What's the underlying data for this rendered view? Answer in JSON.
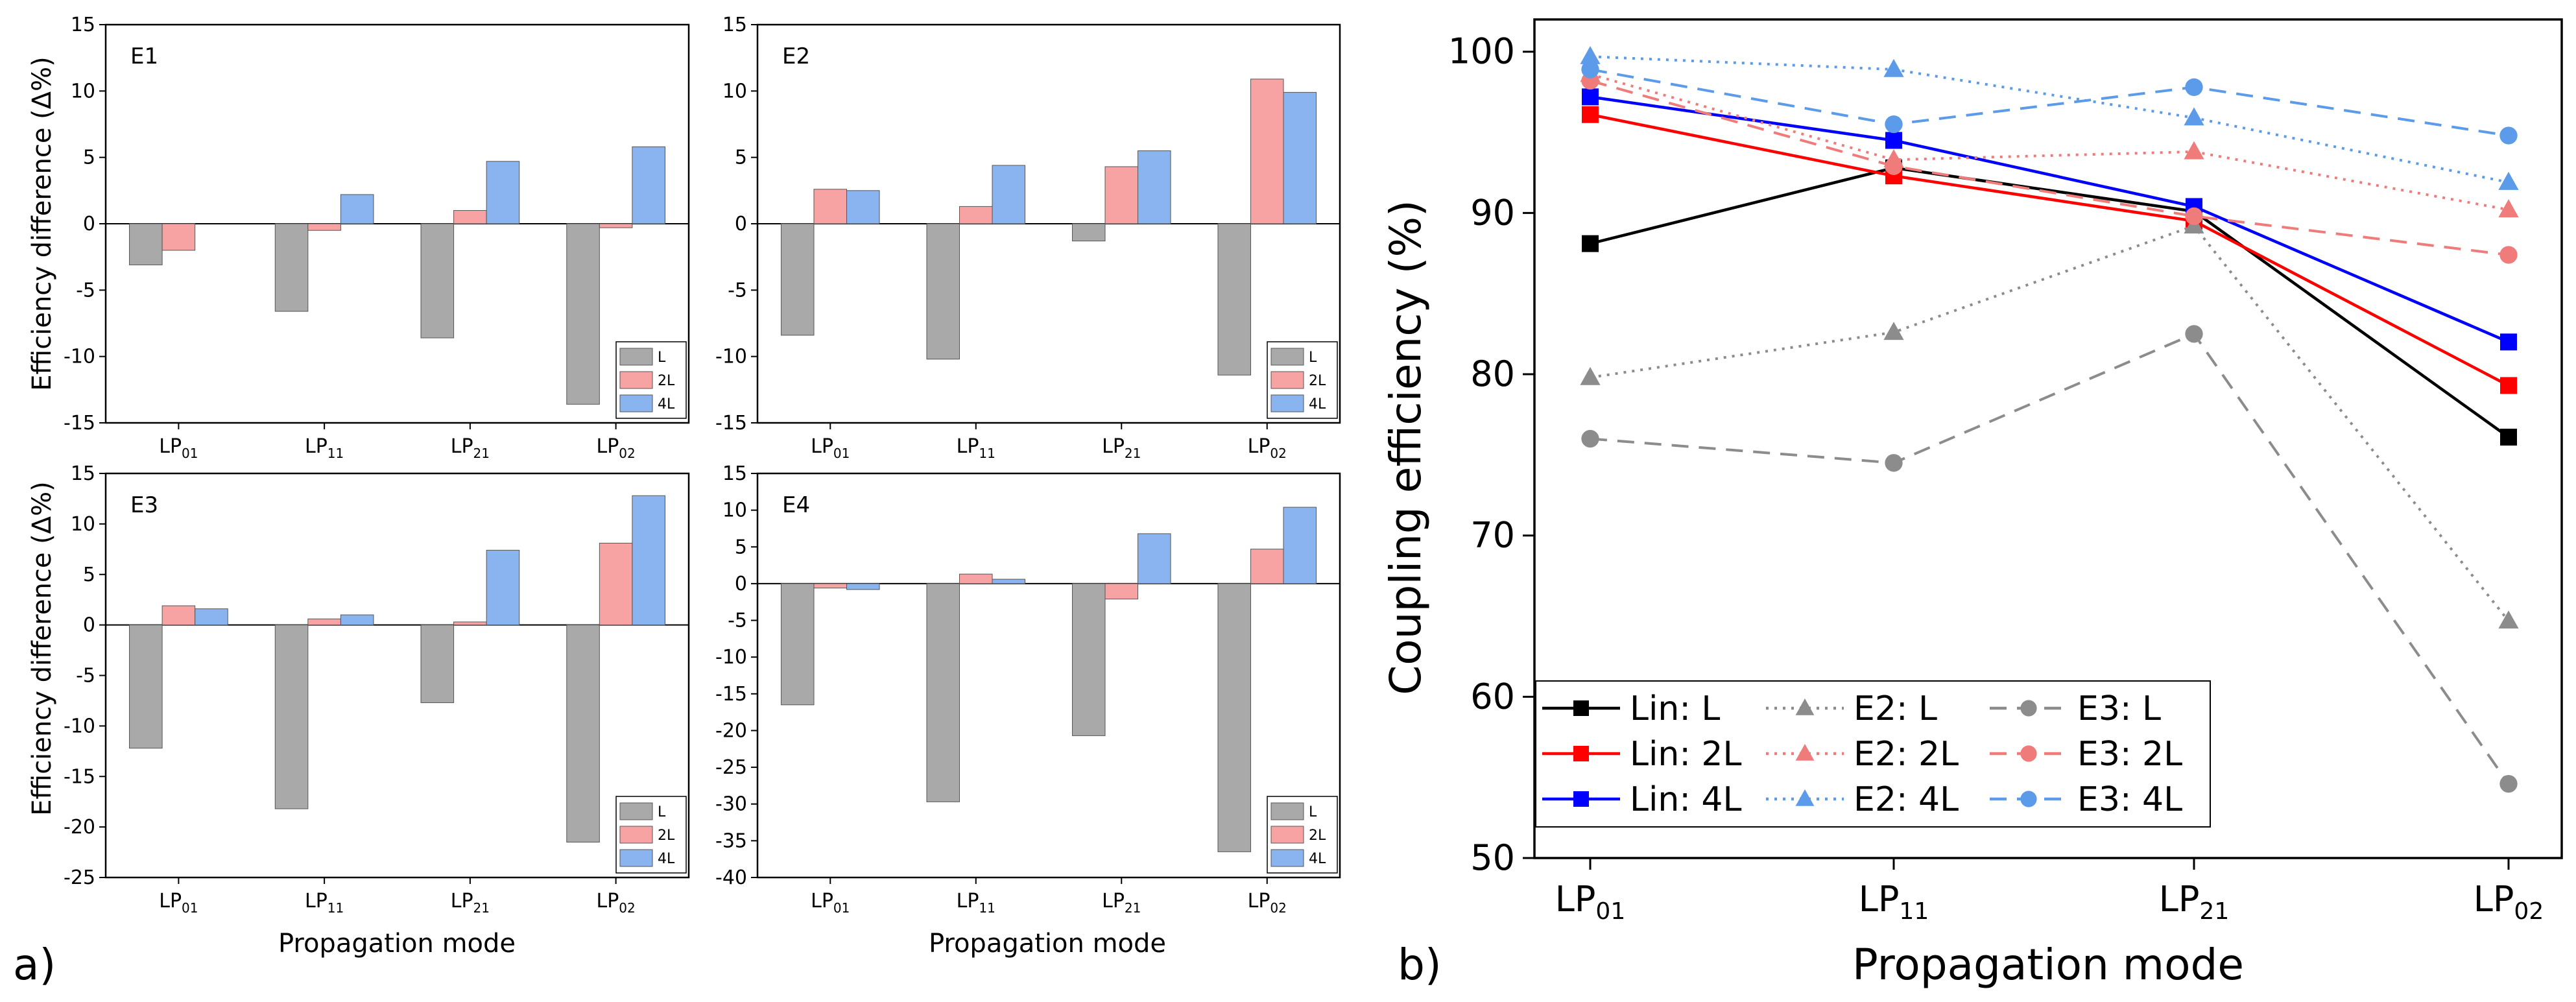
{
  "panel_labels": {
    "a": "a)",
    "b": "b)"
  },
  "small_panels": {
    "ylabel": "Efficiency difference (Δ%)",
    "xlabel": "Propagation mode",
    "legend": [
      "L",
      "2L",
      "4L"
    ]
  },
  "colors": {
    "L": "#a9a9a9",
    "2L": "#f8a3a3",
    "4L": "#8ab4f0",
    "lin_L": "#000000",
    "lin_2L": "#ff0000",
    "lin_4L": "#0000ff",
    "e2_L": "#8c8c8c",
    "e2_2L": "#f07b7b",
    "e2_4L": "#5b9bea",
    "e3_L": "#8c8c8c",
    "e3_2L": "#f07b7b",
    "e3_4L": "#5b9bea"
  },
  "chart_data": [
    {
      "type": "bar",
      "title": "E1",
      "categories": [
        [
          "LP",
          "01"
        ],
        [
          "LP",
          "11"
        ],
        [
          "LP",
          "21"
        ],
        [
          "LP",
          "02"
        ]
      ],
      "ylabel": "Efficiency difference (Δ%)",
      "xlabel": "",
      "ylim": [
        -15,
        15
      ],
      "yticks": [
        15,
        10,
        5,
        0,
        -5,
        -10,
        -15
      ],
      "series": [
        {
          "name": "L",
          "values": [
            -3.1,
            -6.6,
            -8.6,
            -13.6
          ]
        },
        {
          "name": "2L",
          "values": [
            -2.0,
            -0.5,
            1.0,
            -0.3
          ]
        },
        {
          "name": "4L",
          "values": [
            0,
            2.2,
            4.7,
            5.8
          ]
        }
      ]
    },
    {
      "type": "bar",
      "title": "E2",
      "categories": [
        [
          "LP",
          "01"
        ],
        [
          "LP",
          "11"
        ],
        [
          "LP",
          "21"
        ],
        [
          "LP",
          "02"
        ]
      ],
      "ylabel": "",
      "xlabel": "",
      "ylim": [
        -15,
        15
      ],
      "yticks": [
        15,
        10,
        5,
        0,
        -5,
        -10,
        -15
      ],
      "series": [
        {
          "name": "L",
          "values": [
            -8.4,
            -10.2,
            -1.3,
            -11.4
          ]
        },
        {
          "name": "2L",
          "values": [
            2.6,
            1.3,
            4.3,
            10.9
          ]
        },
        {
          "name": "4L",
          "values": [
            2.5,
            4.4,
            5.5,
            9.9
          ]
        }
      ]
    },
    {
      "type": "bar",
      "title": "E3",
      "categories": [
        [
          "LP",
          "01"
        ],
        [
          "LP",
          "11"
        ],
        [
          "LP",
          "21"
        ],
        [
          "LP",
          "02"
        ]
      ],
      "ylabel": "Efficiency difference (Δ%)",
      "xlabel": "Propagation mode",
      "ylim": [
        -25,
        15
      ],
      "yticks": [
        15,
        10,
        5,
        0,
        -5,
        -10,
        -15,
        -20,
        -25
      ],
      "series": [
        {
          "name": "L",
          "values": [
            -12.2,
            -18.2,
            -7.7,
            -21.5
          ]
        },
        {
          "name": "2L",
          "values": [
            1.9,
            0.6,
            0.3,
            8.1
          ]
        },
        {
          "name": "4L",
          "values": [
            1.6,
            1.0,
            7.4,
            12.8
          ]
        }
      ]
    },
    {
      "type": "bar",
      "title": "E4",
      "categories": [
        [
          "LP",
          "01"
        ],
        [
          "LP",
          "11"
        ],
        [
          "LP",
          "21"
        ],
        [
          "LP",
          "02"
        ]
      ],
      "ylabel": "",
      "xlabel": "Propagation mode",
      "ylim": [
        -40,
        15
      ],
      "yticks": [
        15,
        10,
        5,
        0,
        -5,
        -10,
        -15,
        -20,
        -25,
        -30,
        -35,
        -40
      ],
      "series": [
        {
          "name": "L",
          "values": [
            -16.5,
            -29.7,
            -20.7,
            -36.5
          ]
        },
        {
          "name": "2L",
          "values": [
            -0.6,
            1.3,
            -2.1,
            4.7
          ]
        },
        {
          "name": "4L",
          "values": [
            -0.8,
            0.6,
            6.8,
            10.4
          ]
        }
      ]
    },
    {
      "type": "line",
      "title": "",
      "categories": [
        [
          "LP",
          "01"
        ],
        [
          "LP",
          "11"
        ],
        [
          "LP",
          "21"
        ],
        [
          "LP",
          "02"
        ]
      ],
      "xlabel": "Propagation mode",
      "ylabel": "Coupling efficiency (%)",
      "ylim": [
        50,
        102
      ],
      "yticks": [
        100,
        90,
        80,
        70,
        60,
        50
      ],
      "legend_position": "bottom-left",
      "series": [
        {
          "name": "Lin: L",
          "marker": "square",
          "dash": "solid",
          "values": [
            88.1,
            92.8,
            90.1,
            76.1
          ]
        },
        {
          "name": "Lin: 2L",
          "marker": "square",
          "dash": "solid",
          "values": [
            96.1,
            92.3,
            89.5,
            79.3
          ]
        },
        {
          "name": "Lin: 4L",
          "marker": "square",
          "dash": "solid",
          "values": [
            97.2,
            94.5,
            90.4,
            82.0
          ]
        },
        {
          "name": "E2: L",
          "marker": "triangle",
          "dash": "dot",
          "values": [
            79.8,
            82.6,
            89.2,
            64.7
          ]
        },
        {
          "name": "E2: 2L",
          "marker": "triangle",
          "dash": "dot",
          "values": [
            98.6,
            93.3,
            93.8,
            90.2
          ]
        },
        {
          "name": "E2: 4L",
          "marker": "triangle",
          "dash": "dot",
          "values": [
            99.7,
            98.9,
            95.9,
            91.9
          ]
        },
        {
          "name": "E3: L",
          "marker": "circle",
          "dash": "dash",
          "values": [
            76.0,
            74.5,
            82.5,
            54.6
          ]
        },
        {
          "name": "E3: 2L",
          "marker": "circle",
          "dash": "dash",
          "values": [
            98.2,
            92.9,
            89.8,
            87.4
          ]
        },
        {
          "name": "E3: 4L",
          "marker": "circle",
          "dash": "dash",
          "values": [
            98.9,
            95.5,
            97.8,
            94.8
          ]
        }
      ]
    }
  ]
}
